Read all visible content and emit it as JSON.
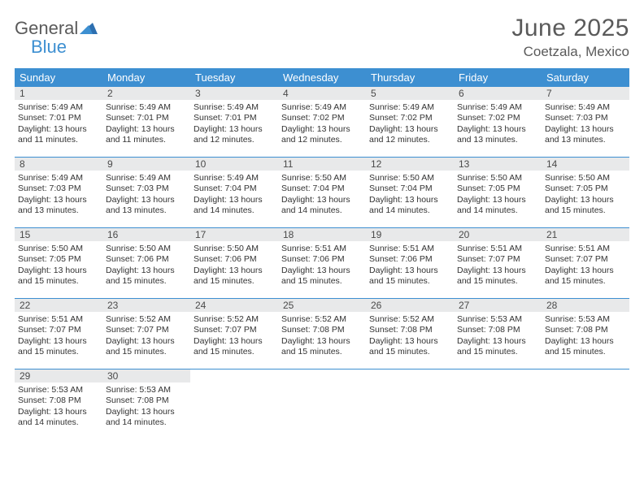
{
  "brand": {
    "word1": "General",
    "word2": "Blue"
  },
  "title": "June 2025",
  "location": "Coetzala, Mexico",
  "colors": {
    "header_bg": "#3d8fd1",
    "daynum_bg": "#e8e9ea",
    "text": "#333333",
    "muted": "#5a5a5a",
    "rule": "#3d8fd1"
  },
  "weekdays": [
    "Sunday",
    "Monday",
    "Tuesday",
    "Wednesday",
    "Thursday",
    "Friday",
    "Saturday"
  ],
  "weeks": [
    [
      {
        "n": "1",
        "sunrise": "5:49 AM",
        "sunset": "7:01 PM",
        "daylight": "13 hours and 11 minutes."
      },
      {
        "n": "2",
        "sunrise": "5:49 AM",
        "sunset": "7:01 PM",
        "daylight": "13 hours and 11 minutes."
      },
      {
        "n": "3",
        "sunrise": "5:49 AM",
        "sunset": "7:01 PM",
        "daylight": "13 hours and 12 minutes."
      },
      {
        "n": "4",
        "sunrise": "5:49 AM",
        "sunset": "7:02 PM",
        "daylight": "13 hours and 12 minutes."
      },
      {
        "n": "5",
        "sunrise": "5:49 AM",
        "sunset": "7:02 PM",
        "daylight": "13 hours and 12 minutes."
      },
      {
        "n": "6",
        "sunrise": "5:49 AM",
        "sunset": "7:02 PM",
        "daylight": "13 hours and 13 minutes."
      },
      {
        "n": "7",
        "sunrise": "5:49 AM",
        "sunset": "7:03 PM",
        "daylight": "13 hours and 13 minutes."
      }
    ],
    [
      {
        "n": "8",
        "sunrise": "5:49 AM",
        "sunset": "7:03 PM",
        "daylight": "13 hours and 13 minutes."
      },
      {
        "n": "9",
        "sunrise": "5:49 AM",
        "sunset": "7:03 PM",
        "daylight": "13 hours and 13 minutes."
      },
      {
        "n": "10",
        "sunrise": "5:49 AM",
        "sunset": "7:04 PM",
        "daylight": "13 hours and 14 minutes."
      },
      {
        "n": "11",
        "sunrise": "5:50 AM",
        "sunset": "7:04 PM",
        "daylight": "13 hours and 14 minutes."
      },
      {
        "n": "12",
        "sunrise": "5:50 AM",
        "sunset": "7:04 PM",
        "daylight": "13 hours and 14 minutes."
      },
      {
        "n": "13",
        "sunrise": "5:50 AM",
        "sunset": "7:05 PM",
        "daylight": "13 hours and 14 minutes."
      },
      {
        "n": "14",
        "sunrise": "5:50 AM",
        "sunset": "7:05 PM",
        "daylight": "13 hours and 15 minutes."
      }
    ],
    [
      {
        "n": "15",
        "sunrise": "5:50 AM",
        "sunset": "7:05 PM",
        "daylight": "13 hours and 15 minutes."
      },
      {
        "n": "16",
        "sunrise": "5:50 AM",
        "sunset": "7:06 PM",
        "daylight": "13 hours and 15 minutes."
      },
      {
        "n": "17",
        "sunrise": "5:50 AM",
        "sunset": "7:06 PM",
        "daylight": "13 hours and 15 minutes."
      },
      {
        "n": "18",
        "sunrise": "5:51 AM",
        "sunset": "7:06 PM",
        "daylight": "13 hours and 15 minutes."
      },
      {
        "n": "19",
        "sunrise": "5:51 AM",
        "sunset": "7:06 PM",
        "daylight": "13 hours and 15 minutes."
      },
      {
        "n": "20",
        "sunrise": "5:51 AM",
        "sunset": "7:07 PM",
        "daylight": "13 hours and 15 minutes."
      },
      {
        "n": "21",
        "sunrise": "5:51 AM",
        "sunset": "7:07 PM",
        "daylight": "13 hours and 15 minutes."
      }
    ],
    [
      {
        "n": "22",
        "sunrise": "5:51 AM",
        "sunset": "7:07 PM",
        "daylight": "13 hours and 15 minutes."
      },
      {
        "n": "23",
        "sunrise": "5:52 AM",
        "sunset": "7:07 PM",
        "daylight": "13 hours and 15 minutes."
      },
      {
        "n": "24",
        "sunrise": "5:52 AM",
        "sunset": "7:07 PM",
        "daylight": "13 hours and 15 minutes."
      },
      {
        "n": "25",
        "sunrise": "5:52 AM",
        "sunset": "7:08 PM",
        "daylight": "13 hours and 15 minutes."
      },
      {
        "n": "26",
        "sunrise": "5:52 AM",
        "sunset": "7:08 PM",
        "daylight": "13 hours and 15 minutes."
      },
      {
        "n": "27",
        "sunrise": "5:53 AM",
        "sunset": "7:08 PM",
        "daylight": "13 hours and 15 minutes."
      },
      {
        "n": "28",
        "sunrise": "5:53 AM",
        "sunset": "7:08 PM",
        "daylight": "13 hours and 15 minutes."
      }
    ],
    [
      {
        "n": "29",
        "sunrise": "5:53 AM",
        "sunset": "7:08 PM",
        "daylight": "13 hours and 14 minutes."
      },
      {
        "n": "30",
        "sunrise": "5:53 AM",
        "sunset": "7:08 PM",
        "daylight": "13 hours and 14 minutes."
      },
      null,
      null,
      null,
      null,
      null
    ]
  ],
  "labels": {
    "sunrise_prefix": "Sunrise: ",
    "sunset_prefix": "Sunset: ",
    "daylight_prefix": "Daylight: "
  }
}
